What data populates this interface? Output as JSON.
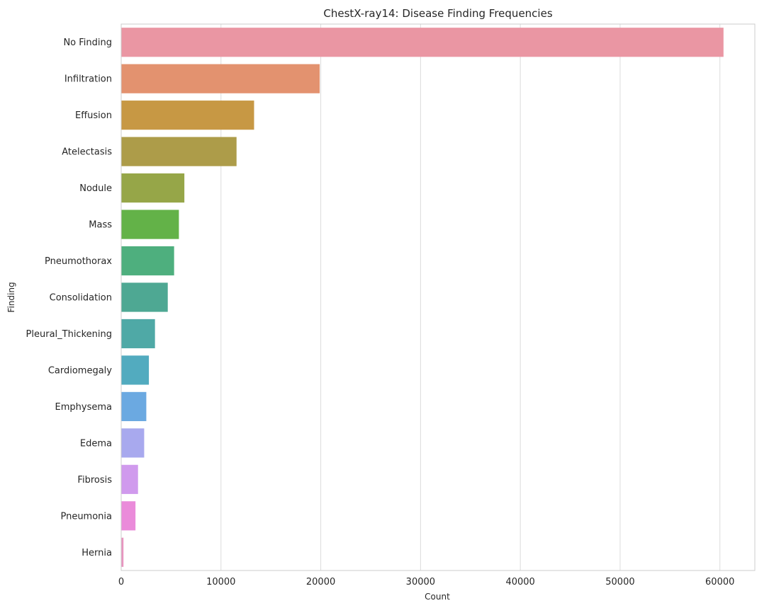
{
  "chart_data": {
    "type": "bar",
    "orientation": "horizontal",
    "title": "ChestX-ray14: Disease Finding Frequencies",
    "xlabel": "Count",
    "ylabel": "Finding",
    "categories": [
      "No Finding",
      "Infiltration",
      "Effusion",
      "Atelectasis",
      "Nodule",
      "Mass",
      "Pneumothorax",
      "Consolidation",
      "Pleural_Thickening",
      "Cardiomegaly",
      "Emphysema",
      "Edema",
      "Fibrosis",
      "Pneumonia",
      "Hernia"
    ],
    "values": [
      60361,
      19894,
      13317,
      11559,
      6331,
      5782,
      5302,
      4667,
      3385,
      2776,
      2516,
      2303,
      1686,
      1431,
      227
    ],
    "colors": [
      "#ea96a3",
      "#e3926f",
      "#c79844",
      "#ad9c49",
      "#96a648",
      "#63b248",
      "#4eaf7e",
      "#4ea893",
      "#4fa9a6",
      "#52abbf",
      "#6ba9e1",
      "#a8a9ee",
      "#d09aed",
      "#ea8bda",
      "#e895bf"
    ],
    "xlim": [
      0,
      63500
    ],
    "xticks": [
      0,
      10000,
      20000,
      30000,
      40000,
      50000,
      60000
    ],
    "grid": "vertical"
  }
}
